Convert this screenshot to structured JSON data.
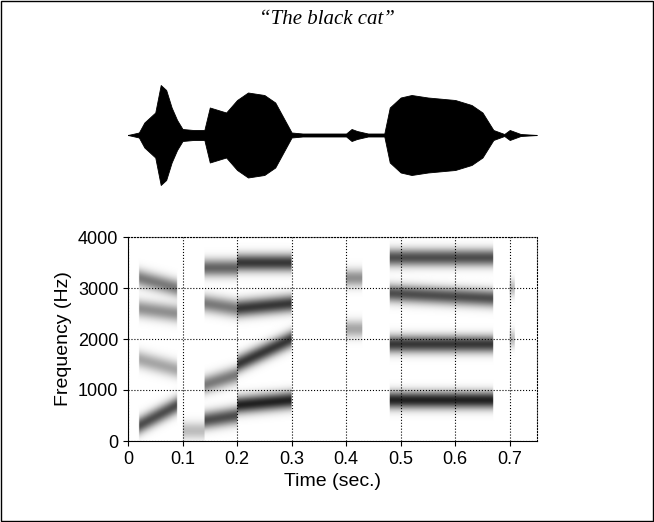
{
  "chart_data": [
    {
      "type": "waveform",
      "title": "“The black cat”",
      "tick_labels": false,
      "xlim": [
        0,
        0.75
      ],
      "ylim": [
        -1,
        1
      ],
      "time": [
        0.0,
        0.02,
        0.03,
        0.05,
        0.06,
        0.07,
        0.08,
        0.09,
        0.1,
        0.12,
        0.14,
        0.15,
        0.18,
        0.2,
        0.22,
        0.25,
        0.27,
        0.28,
        0.29,
        0.3,
        0.32,
        0.35,
        0.4,
        0.41,
        0.42,
        0.44,
        0.47,
        0.48,
        0.5,
        0.52,
        0.55,
        0.6,
        0.63,
        0.65,
        0.67,
        0.69,
        0.7,
        0.71,
        0.72,
        0.75
      ],
      "amplitude": [
        0.0,
        0.05,
        0.25,
        0.45,
        1.0,
        0.9,
        0.55,
        0.3,
        0.12,
        0.1,
        0.1,
        0.55,
        0.45,
        0.7,
        0.85,
        0.8,
        0.65,
        0.45,
        0.25,
        0.05,
        0.03,
        0.03,
        0.03,
        0.12,
        0.08,
        0.03,
        0.03,
        0.55,
        0.75,
        0.8,
        0.75,
        0.7,
        0.6,
        0.45,
        0.1,
        0.02,
        0.1,
        0.06,
        0.02,
        0.0
      ]
    },
    {
      "type": "spectrogram",
      "x_label": "Time (sec.)",
      "y_label": "Frequency (Hz)",
      "xlim": [
        0,
        0.75
      ],
      "ylim": [
        0,
        4000
      ],
      "xticks": [
        0,
        0.1,
        0.2,
        0.3,
        0.4,
        0.5,
        0.6,
        0.7
      ],
      "yticks": [
        0,
        1000,
        2000,
        3000,
        4000
      ],
      "grid": true,
      "segments": [
        {
          "start": 0.02,
          "end": 0.09,
          "formants": [
            {
              "start_hz": 3200,
              "end_hz": 3000,
              "level": 0.6
            },
            {
              "start_hz": 2600,
              "end_hz": 2500,
              "level": 0.5
            },
            {
              "start_hz": 1600,
              "end_hz": 1400,
              "level": 0.4
            },
            {
              "start_hz": 300,
              "end_hz": 700,
              "level": 0.8
            }
          ]
        },
        {
          "start": 0.1,
          "end": 0.14,
          "formants": [
            {
              "start_hz": 200,
              "end_hz": 200,
              "level": 0.3
            }
          ]
        },
        {
          "start": 0.14,
          "end": 0.2,
          "formants": [
            {
              "start_hz": 3400,
              "end_hz": 3400,
              "level": 0.7
            },
            {
              "start_hz": 2700,
              "end_hz": 2600,
              "level": 0.6
            },
            {
              "start_hz": 1100,
              "end_hz": 1300,
              "level": 0.6
            },
            {
              "start_hz": 400,
              "end_hz": 500,
              "level": 0.8
            }
          ]
        },
        {
          "start": 0.2,
          "end": 0.3,
          "formants": [
            {
              "start_hz": 3500,
              "end_hz": 3500,
              "level": 0.9
            },
            {
              "start_hz": 2600,
              "end_hz": 2700,
              "level": 0.9
            },
            {
              "start_hz": 1500,
              "end_hz": 2000,
              "level": 0.9
            },
            {
              "start_hz": 700,
              "end_hz": 800,
              "level": 1.0
            }
          ]
        },
        {
          "start": 0.4,
          "end": 0.43,
          "formants": [
            {
              "start_hz": 3200,
              "end_hz": 3200,
              "level": 0.5
            },
            {
              "start_hz": 2200,
              "end_hz": 2200,
              "level": 0.4
            }
          ]
        },
        {
          "start": 0.48,
          "end": 0.67,
          "formants": [
            {
              "start_hz": 3600,
              "end_hz": 3600,
              "level": 0.8
            },
            {
              "start_hz": 2900,
              "end_hz": 2800,
              "level": 0.8
            },
            {
              "start_hz": 1900,
              "end_hz": 1900,
              "level": 0.9
            },
            {
              "start_hz": 800,
              "end_hz": 800,
              "level": 1.0
            }
          ]
        },
        {
          "start": 0.7,
          "end": 0.71,
          "formants": [
            {
              "start_hz": 3000,
              "end_hz": 3000,
              "level": 0.3
            },
            {
              "start_hz": 2000,
              "end_hz": 2000,
              "level": 0.3
            }
          ]
        }
      ]
    }
  ]
}
